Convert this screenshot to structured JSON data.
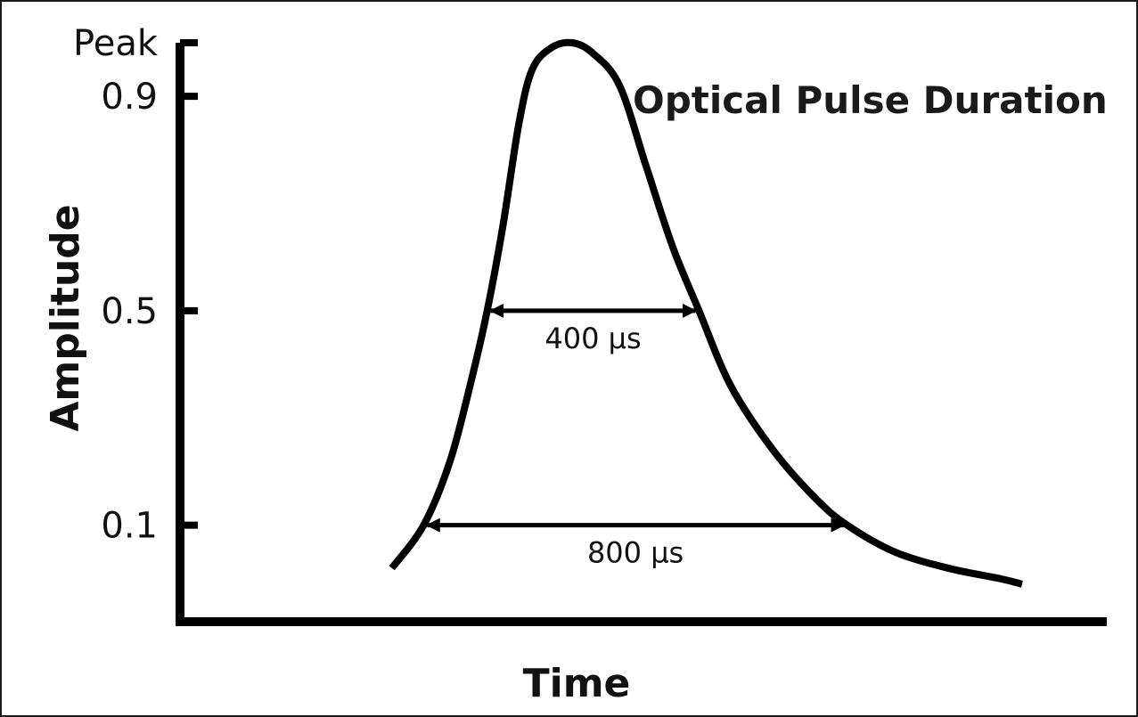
{
  "chart_data": {
    "type": "line",
    "title": "Optical Pulse Duration",
    "xlabel": "Time",
    "ylabel": "Amplitude",
    "y_ticks": [
      {
        "value": 1.0,
        "label": "Peak"
      },
      {
        "value": 0.9,
        "label": "0.9"
      },
      {
        "value": 0.5,
        "label": "0.5"
      },
      {
        "value": 0.1,
        "label": "0.1"
      }
    ],
    "ylim": [
      -0.08,
      1.0
    ],
    "xlim": [
      -400,
      1350
    ],
    "grid": false,
    "series": [
      {
        "color": "#000000",
        "points": [
          [
            0,
            0.02
          ],
          [
            60,
            0.1
          ],
          [
            110,
            0.22
          ],
          [
            150,
            0.37
          ],
          [
            180,
            0.5
          ],
          [
            210,
            0.66
          ],
          [
            240,
            0.85
          ],
          [
            265,
            0.95
          ],
          [
            300,
            0.99
          ],
          [
            340,
            1.0
          ],
          [
            380,
            0.98
          ],
          [
            430,
            0.92
          ],
          [
            480,
            0.77
          ],
          [
            530,
            0.62
          ],
          [
            580,
            0.5
          ],
          [
            640,
            0.36
          ],
          [
            720,
            0.24
          ],
          [
            800,
            0.15
          ],
          [
            860,
            0.1
          ],
          [
            950,
            0.05
          ],
          [
            1050,
            0.02
          ],
          [
            1150,
            0.0
          ],
          [
            1190,
            -0.01
          ]
        ]
      }
    ],
    "annotations": [
      {
        "label": "400 µs",
        "y": 0.5,
        "x_start": 180,
        "x_end": 580
      },
      {
        "label": "800 µs",
        "y": 0.1,
        "x_start": 60,
        "x_end": 860
      }
    ]
  }
}
